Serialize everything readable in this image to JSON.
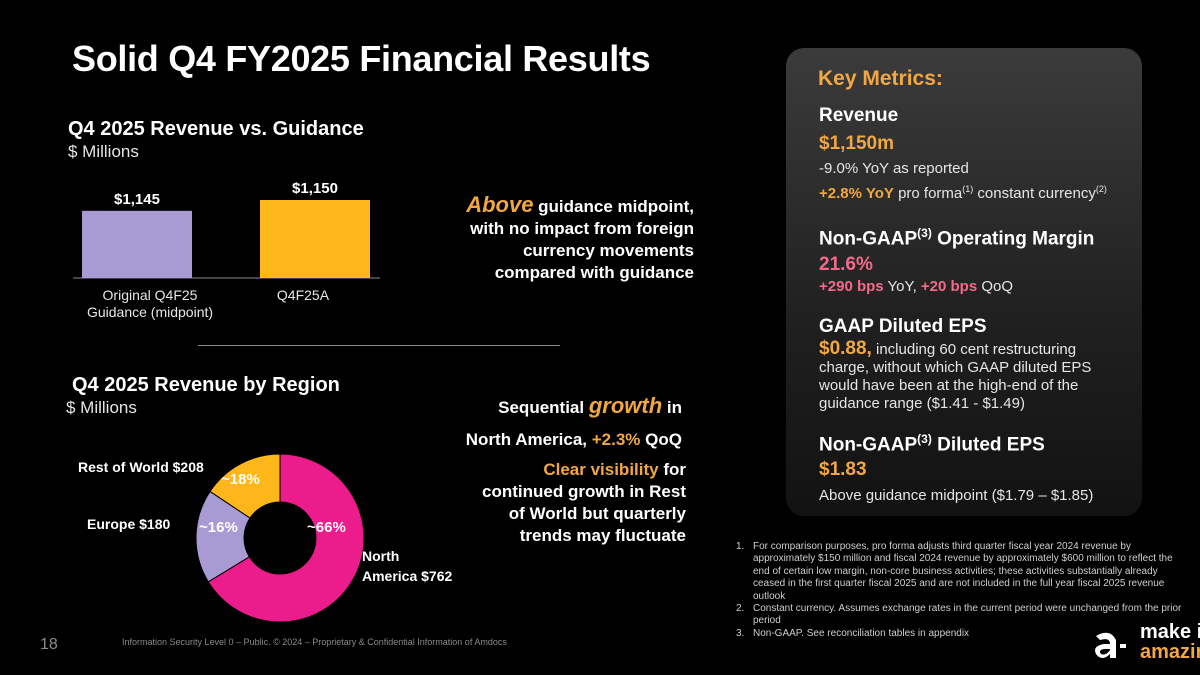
{
  "title": "Solid Q4 FY2025 Financial Results",
  "revenue_section": {
    "title": "Q4 2025 Revenue vs. Guidance",
    "unit": "$ Millions"
  },
  "bar_chart": {
    "type": "bar",
    "categories": [
      "Original Q4F25 Guidance (midpoint)",
      "Q4F25A"
    ],
    "category_lines": [
      [
        "Original Q4F25",
        "Guidance (midpoint)"
      ],
      [
        "Q4F25A"
      ]
    ],
    "values": [
      1145,
      1150
    ],
    "value_labels": [
      "$1,145",
      "$1,150"
    ],
    "colors": [
      "#a89ad3",
      "#fdb71a"
    ]
  },
  "guidance_callout": {
    "emphasis": "Above",
    "line1_rest": " guidance midpoint,",
    "line2": "with no impact from foreign",
    "line3": "currency movements",
    "line4": "compared with guidance"
  },
  "region_section": {
    "title": "Q4 2025 Revenue by Region",
    "unit": "$ Millions"
  },
  "chart_data": {
    "type": "pie",
    "title": "Q4 2025 Revenue by Region",
    "unit": "$ Millions",
    "categories": [
      "North America",
      "Rest of World",
      "Europe"
    ],
    "values": [
      762,
      208,
      180
    ],
    "percent_labels": [
      "~66%",
      "~18%",
      "~16%"
    ],
    "legend_labels": [
      "North America $762",
      "Rest of World $208",
      "Europe $180"
    ],
    "colors": [
      "#ec1c8c",
      "#a89ad3",
      "#fdb71a"
    ],
    "hole": true
  },
  "region_labels": {
    "north_america_line1": "North",
    "north_america_line2": "America $762",
    "rest_of_world": "Rest of World $208",
    "europe": "Europe $180"
  },
  "sequential_callout": {
    "prefix": "Sequential ",
    "emphasis": "growth",
    "suffix": " in",
    "line2_prefix": "North America, ",
    "line2_value": "+2.3%",
    "line2_suffix": " QoQ"
  },
  "visibility_callout": {
    "emphasis": "Clear visibility",
    "line1_rest": " for",
    "line2": "continued growth in Rest",
    "line3": "of World but quarterly",
    "line4": "trends may fluctuate"
  },
  "key_metrics": {
    "title": "Key Metrics:",
    "revenue": {
      "head": "Revenue",
      "value": "$1,150m",
      "line1": "-9.0% YoY as reported",
      "line2_value": "+2.8% YoY",
      "line2_text": " pro forma",
      "line2_sup1": "(1)",
      "line2_text2": " constant currency",
      "line2_sup2": "(2)"
    },
    "operating_margin": {
      "head_prefix": "Non-GAAP",
      "head_sup": "(3)",
      "head_suffix": " Operating Margin",
      "value": "21.6%",
      "yoy_value": "+290 bps",
      "yoy_text": " YoY, ",
      "qoq_value": "+20 bps",
      "qoq_text": " QoQ"
    },
    "gaap_eps": {
      "head": "GAAP Diluted EPS",
      "value": "$0.88,",
      "line1": " including 60 cent restructuring",
      "line2": "charge, without which GAAP diluted EPS",
      "line3": "would have been at the high-end of the",
      "line4": "guidance range ($1.41 - $1.49)"
    },
    "non_gaap_eps": {
      "head_prefix": "Non-GAAP",
      "head_sup": "(3)",
      "head_suffix": " Diluted EPS",
      "value": "$1.83",
      "line1": "Above guidance midpoint ($1.79 – $1.85)"
    }
  },
  "footnotes": [
    {
      "num": "1.",
      "text": "For comparison purposes, pro forma adjusts third quarter fiscal year 2024 revenue by approximately $150 million and fiscal 2024 revenue by approximately $600 million to reflect the end of certain low margin, non-core business activities; these activities substantially already ceased in the first quarter fiscal 2025 and are not included in the full year fiscal 2025 revenue outlook"
    },
    {
      "num": "2.",
      "text": "Constant currency. Assumes exchange rates in the current period were unchanged from the prior period"
    },
    {
      "num": "3.",
      "text": "Non-GAAP. See reconciliation tables in appendix"
    }
  ],
  "page_number": "18",
  "footer_text": "Information Security Level 0 – Public. © 2024 – Proprietary & Confidential Information of Amdocs",
  "logo": {
    "line1": "make it",
    "line2": "amazing",
    "accent": "#f2a742"
  }
}
